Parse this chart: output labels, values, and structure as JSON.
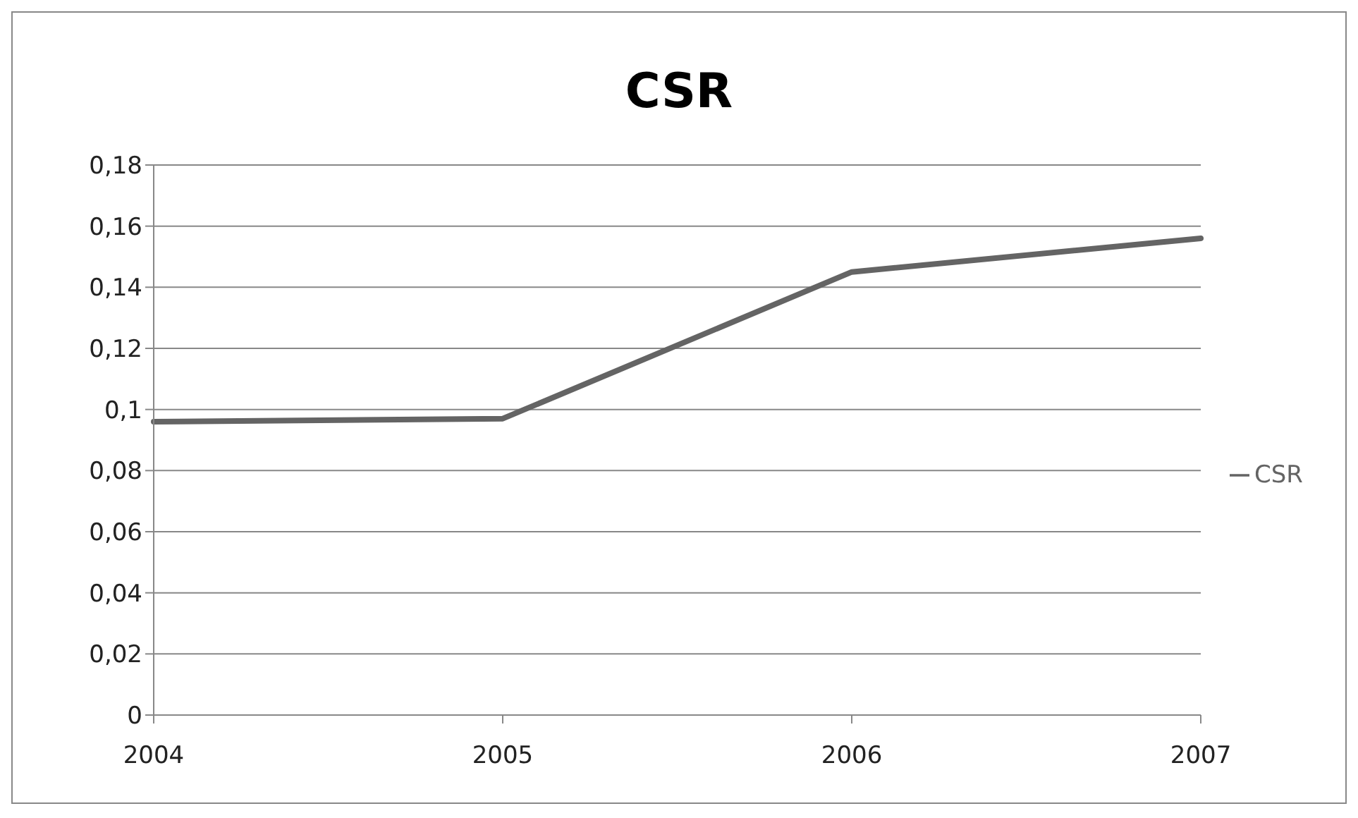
{
  "chart_data": {
    "type": "line",
    "title": "CSR",
    "categories": [
      "2004",
      "2005",
      "2006",
      "2007"
    ],
    "series": [
      {
        "name": "CSR",
        "color": "#646464",
        "values": [
          0.096,
          0.097,
          0.145,
          0.156
        ]
      }
    ],
    "ylim": [
      0,
      0.18
    ],
    "yticks": [
      0,
      {
        "value": 0.02,
        "label": "0,02"
      },
      {
        "value": 0.04,
        "label": "0,04"
      },
      {
        "value": 0.06,
        "label": "0,06"
      },
      {
        "value": 0.08,
        "label": "0,08"
      },
      {
        "value": 0.1,
        "label": "0,1"
      },
      {
        "value": 0.12,
        "label": "0,12"
      },
      {
        "value": 0.14,
        "label": "0,14"
      },
      {
        "value": 0.16,
        "label": "0,16"
      },
      {
        "value": 0.18,
        "label": "0,18"
      }
    ],
    "grid": "y",
    "legend": "right",
    "marker": "none",
    "line_style": "solid"
  }
}
